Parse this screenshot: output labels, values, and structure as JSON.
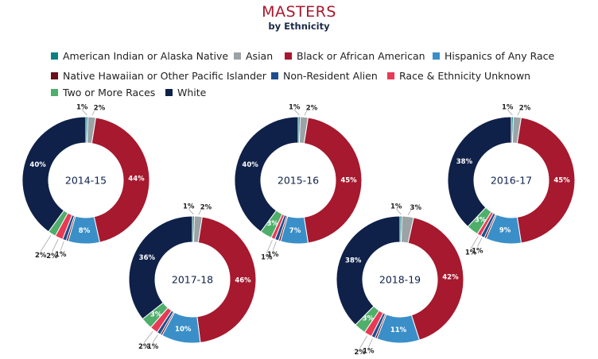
{
  "title": "MASTERS",
  "subtitle": "by Ethnicity",
  "colors": {
    "American Indian or Alaska Native": "#0d7f83",
    "Asian": "#9aa3a6",
    "Black or African American": "#a6192e",
    "Hispanics of Any Race": "#3a8fc8",
    "Native Hawaiian or Other Pacific Islander": "#6b0f1a",
    "Non-Resident Alien": "#1f4e8c",
    "Race & Ethnicity Unknown": "#e83a55",
    "Two or More Races": "#4fae6a",
    "White": "#0f2149"
  },
  "chart_data": {
    "type": "pie",
    "title": "MASTERS",
    "subtitle": "by Ethnicity",
    "legend": [
      "American Indian or Alaska Native",
      "Asian",
      "Black or African American",
      "Hispanics of Any Race",
      "Native Hawaiian or Other Pacific Islander",
      "Non-Resident Alien",
      "Race & Ethnicity Unknown",
      "Two or More Races",
      "White"
    ],
    "donuts": [
      {
        "year": "2014-15",
        "slices": [
          {
            "category": "American Indian or Alaska Native",
            "value": 0.5,
            "label": ""
          },
          {
            "category": "Asian",
            "value": 2,
            "label": "2%"
          },
          {
            "category": "Black or African American",
            "value": 44,
            "label": "44%"
          },
          {
            "category": "Hispanics of Any Race",
            "value": 8,
            "label": "8%"
          },
          {
            "category": "Native Hawaiian or Other Pacific Islander",
            "value": 0.5,
            "label": ""
          },
          {
            "category": "Non-Resident Alien",
            "value": 1,
            "label": "1%"
          },
          {
            "category": "Race & Ethnicity Unknown",
            "value": 2,
            "label": "2%"
          },
          {
            "category": "Two or More Races",
            "value": 2,
            "label": "2%"
          },
          {
            "category": "White",
            "value": 40,
            "label": "40%"
          }
        ],
        "extra_labels": [
          "1%"
        ]
      },
      {
        "year": "2015-16",
        "slices": [
          {
            "category": "American Indian or Alaska Native",
            "value": 0.5,
            "label": ""
          },
          {
            "category": "Asian",
            "value": 2,
            "label": "2%"
          },
          {
            "category": "Black or African American",
            "value": 45,
            "label": "45%"
          },
          {
            "category": "Hispanics of Any Race",
            "value": 7,
            "label": "7%"
          },
          {
            "category": "Native Hawaiian or Other Pacific Islander",
            "value": 0.5,
            "label": ""
          },
          {
            "category": "Non-Resident Alien",
            "value": 1,
            "label": "1%"
          },
          {
            "category": "Race & Ethnicity Unknown",
            "value": 1,
            "label": "1%"
          },
          {
            "category": "Two or More Races",
            "value": 3,
            "label": "3%"
          },
          {
            "category": "White",
            "value": 40,
            "label": "40%"
          }
        ],
        "extra_labels": [
          "1%"
        ]
      },
      {
        "year": "2016-17",
        "slices": [
          {
            "category": "American Indian or Alaska Native",
            "value": 0.5,
            "label": ""
          },
          {
            "category": "Asian",
            "value": 2,
            "label": "2%"
          },
          {
            "category": "Black or African American",
            "value": 45,
            "label": "45%"
          },
          {
            "category": "Hispanics of Any Race",
            "value": 9,
            "label": "9%"
          },
          {
            "category": "Native Hawaiian or Other Pacific Islander",
            "value": 0.5,
            "label": ""
          },
          {
            "category": "Non-Resident Alien",
            "value": 1,
            "label": "1%"
          },
          {
            "category": "Race & Ethnicity Unknown",
            "value": 1,
            "label": "1%"
          },
          {
            "category": "Two or More Races",
            "value": 3,
            "label": "3%"
          },
          {
            "category": "White",
            "value": 38,
            "label": "38%"
          }
        ],
        "extra_labels": [
          "1%"
        ]
      },
      {
        "year": "2017-18",
        "slices": [
          {
            "category": "American Indian or Alaska Native",
            "value": 0.5,
            "label": ""
          },
          {
            "category": "Asian",
            "value": 2,
            "label": "2%"
          },
          {
            "category": "Black or African American",
            "value": 46,
            "label": "46%"
          },
          {
            "category": "Hispanics of Any Race",
            "value": 10,
            "label": "10%"
          },
          {
            "category": "Native Hawaiian or Other Pacific Islander",
            "value": 0.5,
            "label": ""
          },
          {
            "category": "Non-Resident Alien",
            "value": 1,
            "label": "1%"
          },
          {
            "category": "Race & Ethnicity Unknown",
            "value": 2,
            "label": "2%"
          },
          {
            "category": "Two or More Races",
            "value": 3,
            "label": "3%"
          },
          {
            "category": "White",
            "value": 36,
            "label": "36%"
          }
        ],
        "extra_labels": [
          "1%"
        ]
      },
      {
        "year": "2018-19",
        "slices": [
          {
            "category": "American Indian or Alaska Native",
            "value": 0.5,
            "label": ""
          },
          {
            "category": "Asian",
            "value": 3,
            "label": "3%"
          },
          {
            "category": "Black or African American",
            "value": 42,
            "label": "42%"
          },
          {
            "category": "Hispanics of Any Race",
            "value": 11,
            "label": "11%"
          },
          {
            "category": "Native Hawaiian or Other Pacific Islander",
            "value": 0.5,
            "label": ""
          },
          {
            "category": "Non-Resident Alien",
            "value": 1,
            "label": "1%"
          },
          {
            "category": "Race & Ethnicity Unknown",
            "value": 2,
            "label": "2%"
          },
          {
            "category": "Two or More Races",
            "value": 3,
            "label": "3%"
          },
          {
            "category": "White",
            "value": 38,
            "label": "38%"
          }
        ],
        "extra_labels": [
          "1%"
        ]
      }
    ]
  }
}
